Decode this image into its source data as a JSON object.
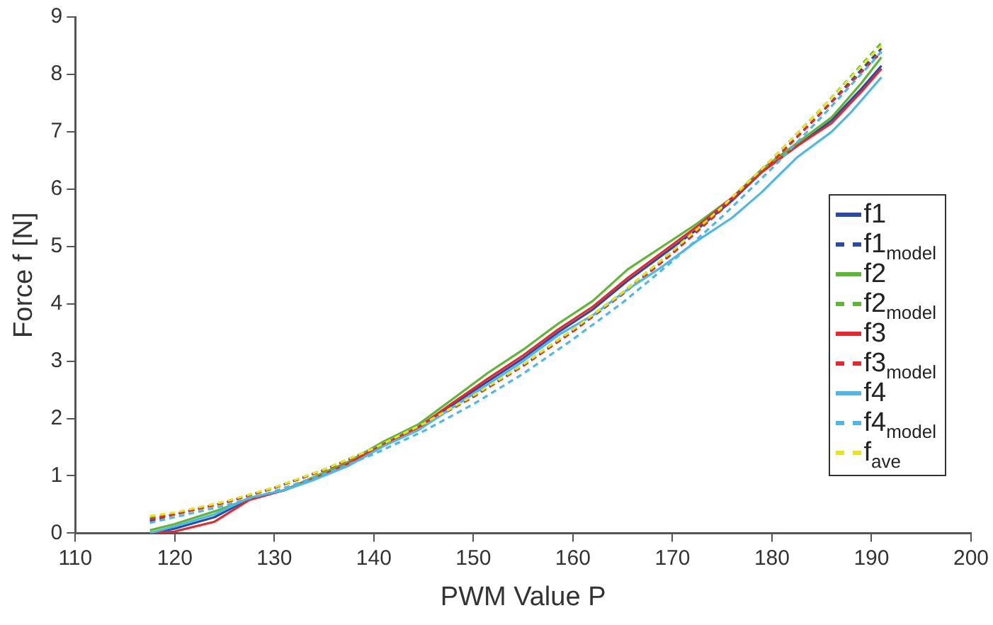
{
  "chart_data": {
    "type": "line",
    "xlabel": "PWM Value P",
    "ylabel": "Force f [N]",
    "xlim": [
      110,
      200
    ],
    "xticks": [
      110,
      120,
      130,
      140,
      150,
      160,
      170,
      180,
      190,
      200
    ],
    "ylim": [
      0,
      9
    ],
    "yticks": [
      0,
      1,
      2,
      3,
      4,
      5,
      6,
      7,
      8,
      9
    ],
    "grid": false,
    "legend": "right",
    "marker": "none",
    "series": [
      {
        "name": "f1",
        "color": "#2a4aa8",
        "line_style": "solid",
        "x": [
          117.5,
          120,
          124,
          127.5,
          131,
          134,
          137.5,
          141,
          144.5,
          148,
          151.5,
          155,
          158.5,
          162,
          165.5,
          169,
          172.5,
          176,
          179,
          182.5,
          186,
          189,
          191
        ],
        "values": [
          0,
          0.08,
          0.28,
          0.6,
          0.75,
          0.95,
          1.2,
          1.55,
          1.85,
          2.25,
          2.65,
          3.05,
          3.5,
          3.9,
          4.4,
          4.85,
          5.3,
          5.8,
          6.3,
          6.75,
          7.2,
          7.75,
          8.15
        ]
      },
      {
        "name": "f1$_{model}$",
        "color": "#2a4aa8",
        "line_style": "dashed",
        "x": [
          117.5,
          120,
          125,
          130,
          135,
          140,
          145,
          150,
          155,
          160,
          165,
          170,
          175,
          180,
          185,
          190,
          191
        ],
        "values": [
          0.21,
          0.33,
          0.53,
          0.79,
          1.1,
          1.47,
          1.89,
          2.38,
          2.92,
          3.52,
          4.17,
          4.88,
          5.65,
          6.47,
          7.34,
          8.27,
          8.45
        ]
      },
      {
        "name": "f2",
        "color": "#5cb832",
        "line_style": "solid",
        "x": [
          117.5,
          120,
          124,
          127.5,
          131,
          134,
          137.5,
          141,
          144.5,
          148,
          151.5,
          155,
          158.5,
          162,
          165.5,
          169,
          172.5,
          176,
          179,
          182.5,
          186,
          189,
          191
        ],
        "values": [
          0.05,
          0.16,
          0.38,
          0.6,
          0.75,
          0.98,
          1.25,
          1.6,
          1.9,
          2.35,
          2.8,
          3.2,
          3.65,
          4.05,
          4.6,
          5.0,
          5.4,
          5.85,
          6.35,
          6.8,
          7.25,
          7.85,
          8.3
        ]
      },
      {
        "name": "f2$_{model}$",
        "color": "#5cb832",
        "line_style": "dashed",
        "x": [
          117.5,
          120,
          125,
          130,
          135,
          140,
          145,
          150,
          155,
          160,
          165,
          170,
          175,
          180,
          185,
          190,
          191
        ],
        "values": [
          0.27,
          0.33,
          0.53,
          0.79,
          1.11,
          1.48,
          1.91,
          2.4,
          2.94,
          3.55,
          4.2,
          4.92,
          5.69,
          6.52,
          7.41,
          8.36,
          8.55
        ]
      },
      {
        "name": "f3",
        "color": "#e8262b",
        "line_style": "solid",
        "x": [
          117.5,
          120,
          124,
          127.5,
          131,
          134,
          137.5,
          141,
          144.5,
          148,
          151.5,
          155,
          158.5,
          162,
          165.5,
          169,
          172.5,
          176,
          179,
          182.5,
          186,
          189,
          191
        ],
        "values": [
          0,
          0.03,
          0.2,
          0.58,
          0.75,
          0.95,
          1.22,
          1.55,
          1.85,
          2.28,
          2.7,
          3.1,
          3.55,
          3.95,
          4.45,
          4.9,
          5.35,
          5.85,
          6.3,
          6.75,
          7.15,
          7.7,
          8.1
        ]
      },
      {
        "name": "f3$_{model}$",
        "color": "#e8262b",
        "line_style": "dashed",
        "x": [
          117.5,
          120,
          125,
          130,
          135,
          140,
          145,
          150,
          155,
          160,
          165,
          170,
          175,
          180,
          185,
          190,
          191
        ],
        "values": [
          0.24,
          0.33,
          0.53,
          0.79,
          1.1,
          1.47,
          1.89,
          2.38,
          2.92,
          3.52,
          4.17,
          4.88,
          5.65,
          6.47,
          7.34,
          8.22,
          8.38
        ]
      },
      {
        "name": "f4",
        "color": "#4db8e8",
        "line_style": "solid",
        "x": [
          117.5,
          120,
          124,
          127.5,
          131,
          134,
          137.5,
          141,
          144.5,
          148,
          151.5,
          155,
          158.5,
          162,
          165.5,
          169,
          172.5,
          176,
          179,
          182.5,
          186,
          188,
          191
        ],
        "values": [
          0,
          0.12,
          0.33,
          0.62,
          0.75,
          0.93,
          1.18,
          1.52,
          1.8,
          2.2,
          2.6,
          3.0,
          3.45,
          3.8,
          4.25,
          4.65,
          5.1,
          5.5,
          5.95,
          6.55,
          7.0,
          7.35,
          7.95
        ]
      },
      {
        "name": "f4$_{model}$",
        "color": "#4db8e8",
        "line_style": "dashed",
        "x": [
          117.5,
          120,
          125,
          130,
          135,
          140,
          145,
          150,
          155,
          160,
          165,
          170,
          175,
          180,
          185,
          190,
          191
        ],
        "values": [
          0.18,
          0.28,
          0.48,
          0.73,
          1.03,
          1.38,
          1.78,
          2.25,
          2.78,
          3.38,
          4.02,
          4.74,
          5.52,
          6.36,
          7.26,
          8.2,
          8.4
        ]
      },
      {
        "name": "f$_{ave}$",
        "color": "#e6e619",
        "line_style": "dashed",
        "x": [
          117.5,
          120,
          125,
          130,
          135,
          140,
          145,
          150,
          155,
          160,
          165,
          170,
          175,
          180,
          185,
          190,
          191
        ],
        "values": [
          0.3,
          0.36,
          0.55,
          0.8,
          1.11,
          1.48,
          1.91,
          2.4,
          2.94,
          3.55,
          4.2,
          4.92,
          5.69,
          6.52,
          7.41,
          8.33,
          8.5
        ]
      }
    ]
  }
}
